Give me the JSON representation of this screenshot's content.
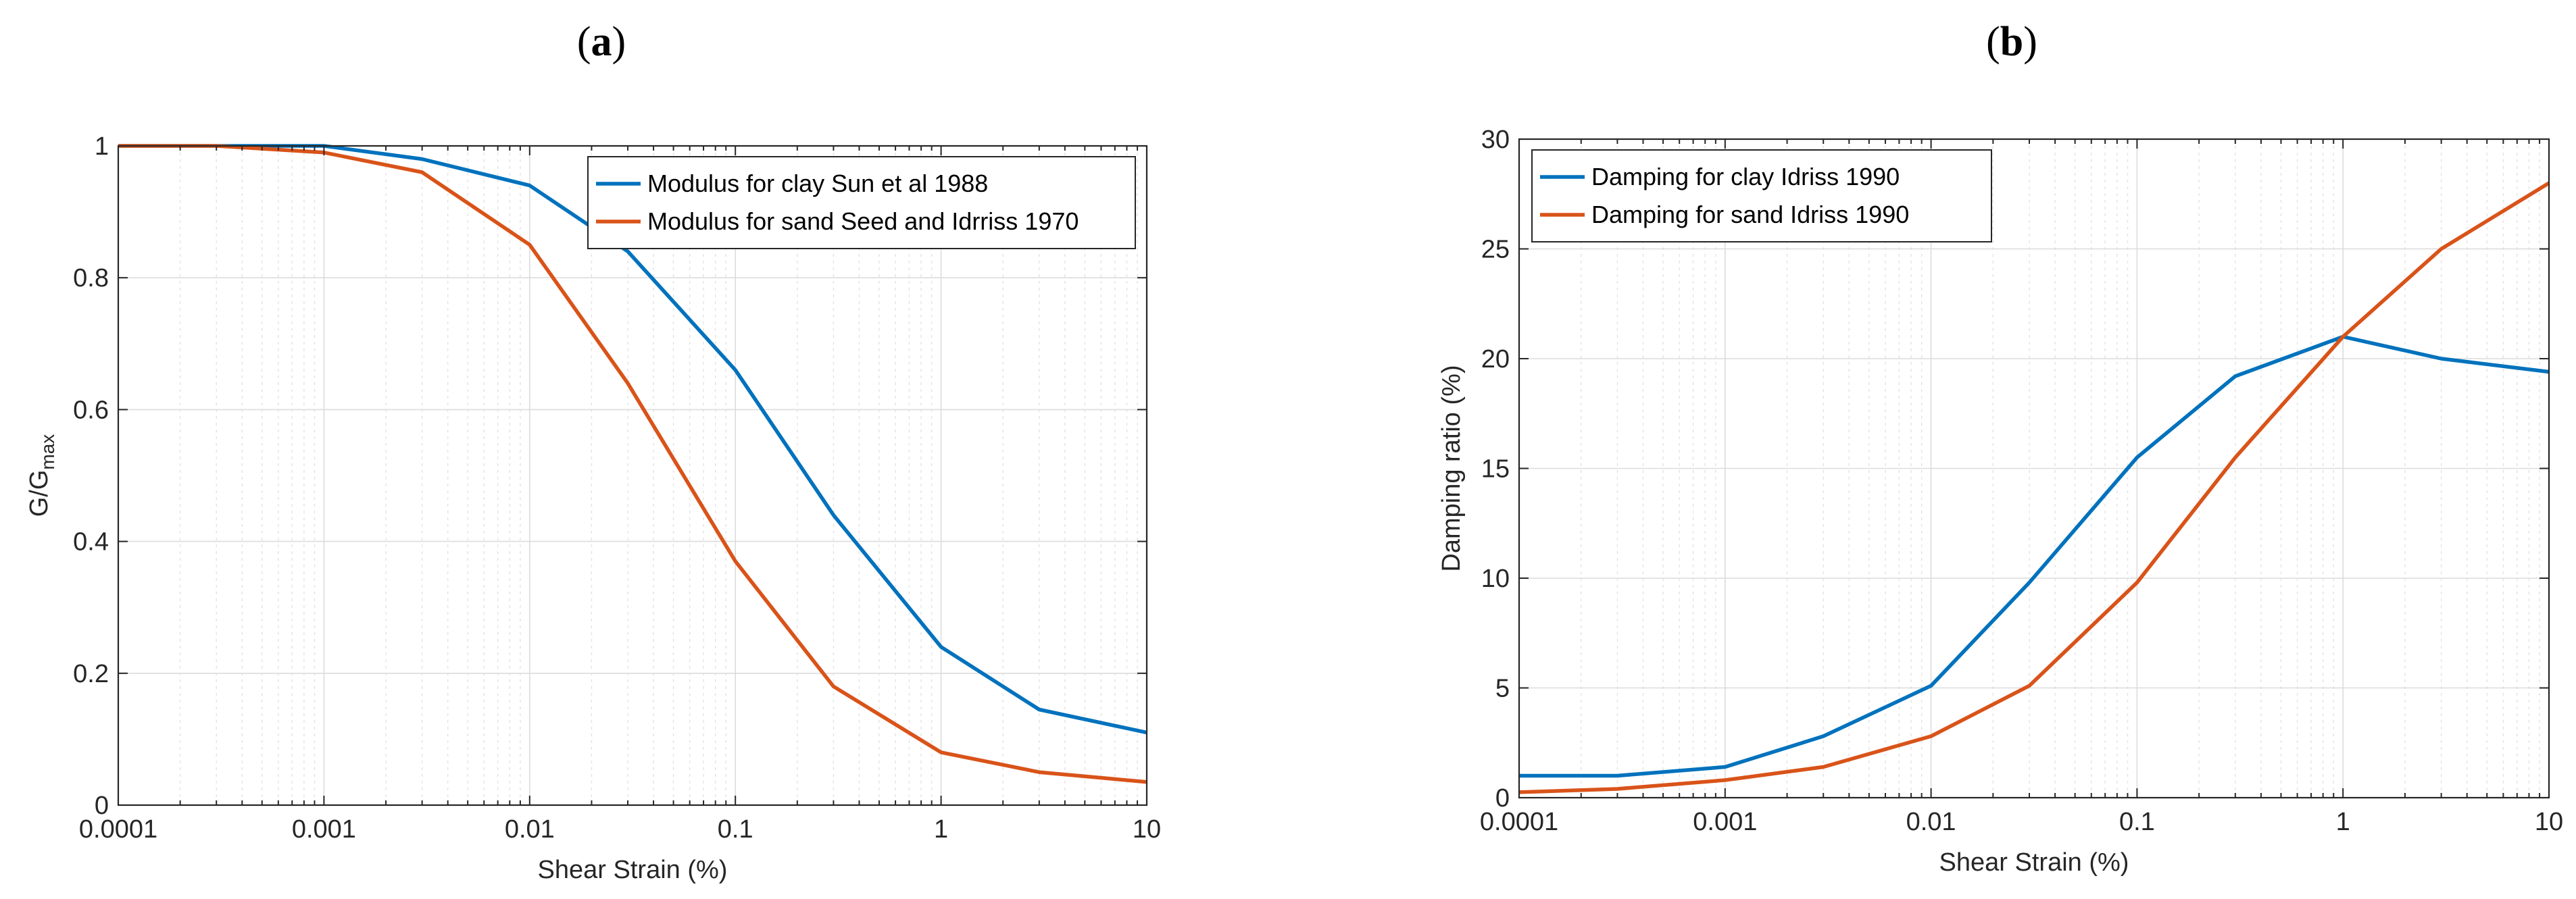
{
  "chart_data": [
    {
      "type": "line",
      "panel": "(a)",
      "panel_parts": [
        "(",
        "a",
        ")"
      ],
      "xscale": "log",
      "xlim": [
        0.0001,
        10
      ],
      "ylim": [
        0,
        1
      ],
      "x_ticks": [
        "0.0001",
        "0.001",
        "0.01",
        "0.1",
        "1",
        "10"
      ],
      "y_ticks": [
        "0",
        "0.2",
        "0.4",
        "0.6",
        "0.8",
        "1"
      ],
      "xlabel": "Shear Strain (%)",
      "ylabel": "G/G",
      "ylabel_subscript": "max",
      "grid": true,
      "legend_position": "top-right",
      "series": [
        {
          "name": "Modulus for clay Sun et al 1988",
          "color": "#0072BD",
          "x": [
            0.0001,
            0.0003,
            0.001,
            0.003,
            0.01,
            0.03,
            0.1,
            0.3,
            1,
            3,
            10
          ],
          "y": [
            1.0,
            1.0,
            1.0,
            0.98,
            0.94,
            0.84,
            0.66,
            0.44,
            0.24,
            0.145,
            0.11
          ]
        },
        {
          "name": "Modulus for sand Seed and Idrriss 1970",
          "color": "#D95319",
          "x": [
            0.0001,
            0.0003,
            0.001,
            0.003,
            0.01,
            0.03,
            0.1,
            0.3,
            1,
            3,
            10
          ],
          "y": [
            1.0,
            1.0,
            0.99,
            0.96,
            0.85,
            0.64,
            0.37,
            0.18,
            0.08,
            0.05,
            0.035
          ]
        }
      ]
    },
    {
      "type": "line",
      "panel": "(b)",
      "panel_parts": [
        "(",
        "b",
        ")"
      ],
      "xscale": "log",
      "xlim": [
        0.0001,
        10
      ],
      "ylim": [
        0,
        30
      ],
      "x_ticks": [
        "0.0001",
        "0.001",
        "0.01",
        "0.1",
        "1",
        "10"
      ],
      "y_ticks": [
        "0",
        "5",
        "10",
        "15",
        "20",
        "25",
        "30"
      ],
      "xlabel": "Shear Strain (%)",
      "ylabel": "Damping ratio (%)",
      "ylabel_subscript": "",
      "grid": true,
      "legend_position": "top-left",
      "series": [
        {
          "name": "Damping for clay Idriss 1990",
          "color": "#0072BD",
          "x": [
            0.0001,
            0.0003,
            0.001,
            0.003,
            0.01,
            0.03,
            0.1,
            0.3,
            1,
            3,
            10
          ],
          "y": [
            1.0,
            1.0,
            1.4,
            2.8,
            5.1,
            9.8,
            15.5,
            19.2,
            21.0,
            20.0,
            19.4
          ]
        },
        {
          "name": "Damping for sand Idriss 1990",
          "color": "#D95319",
          "x": [
            0.0001,
            0.0003,
            0.001,
            0.003,
            0.01,
            0.03,
            0.1,
            0.3,
            1,
            3,
            10
          ],
          "y": [
            0.25,
            0.4,
            0.8,
            1.4,
            2.8,
            5.1,
            9.8,
            15.5,
            21.0,
            25.0,
            28.0
          ]
        }
      ]
    }
  ]
}
